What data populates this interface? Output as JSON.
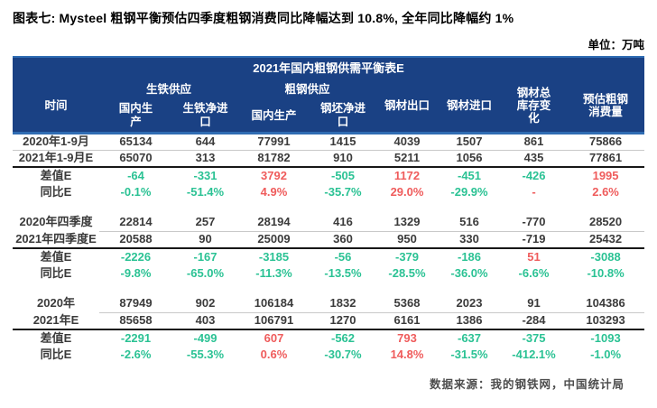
{
  "page": {
    "title": "图表七: Mysteel 粗钢平衡预估四季度粗钢消费同比降幅达到 10.8%, 全年同比降幅约 1%",
    "unit_label": "单位：万吨",
    "source": "数据来源：我的钢铁网，中国统计局"
  },
  "colors": {
    "header_bg": "#1a4184",
    "header_accent_line": "#2f6cb3",
    "positive_red": "#ef5c5c",
    "negative_green": "#2bc294",
    "body_text": "#3b3b3b"
  },
  "table": {
    "title": "2021年国内粗钢供需平衡表E",
    "header": {
      "time": "时间",
      "pig_iron_supply": "生铁供应",
      "crude_steel_supply": "粗钢供应",
      "pig_domestic": "国内生产",
      "pig_net_import": "生铁净进口",
      "crude_domestic": "国内生产",
      "billet_net_import": "钢坯净进口",
      "steel_export": "钢材出口",
      "steel_import": "钢材进口",
      "inventory_change": "钢材总库存变化",
      "est_consumption": "预估粗钢消费量"
    },
    "groups": [
      {
        "label_underline": true,
        "rows": [
          {
            "label": "2020年1-9月",
            "type": "actual",
            "values": [
              "65134",
              "644",
              "77991",
              "1415",
              "4039",
              "1507",
              "861",
              "75866"
            ]
          },
          {
            "label": "2021年1-9月E",
            "type": "actual",
            "values": [
              "65070",
              "313",
              "81782",
              "910",
              "5211",
              "1056",
              "435",
              "77861"
            ]
          },
          {
            "label": "差值E",
            "type": "diff",
            "values": [
              "-64",
              "-331",
              "3792",
              "-505",
              "1172",
              "-451",
              "-426",
              "1995"
            ]
          },
          {
            "label": "同比E",
            "type": "pct",
            "values": [
              "-0.1%",
              "-51.4%",
              "4.9%",
              "-35.7%",
              "29.0%",
              "-29.9%",
              "-",
              "2.6%"
            ]
          }
        ]
      },
      {
        "label_underline": false,
        "rows": [
          {
            "label": "2020年四季度",
            "type": "actual",
            "values": [
              "22814",
              "257",
              "28194",
              "416",
              "1329",
              "516",
              "-770",
              "28520"
            ]
          },
          {
            "label": "2021年四季度E",
            "type": "actual",
            "values": [
              "20588",
              "90",
              "25009",
              "360",
              "950",
              "330",
              "-719",
              "25432"
            ]
          },
          {
            "label": "差值E",
            "type": "diff",
            "values": [
              "-2226",
              "-167",
              "-3185",
              "-56",
              "-379",
              "-186",
              "51",
              "-3088"
            ]
          },
          {
            "label": "同比E",
            "type": "pct",
            "values": [
              "-9.8%",
              "-65.0%",
              "-11.3%",
              "-13.5%",
              "-28.5%",
              "-36.0%",
              "-6.6%",
              "-10.8%"
            ]
          }
        ]
      },
      {
        "label_underline": false,
        "rows": [
          {
            "label": "2020年",
            "type": "actual",
            "values": [
              "87949",
              "902",
              "106184",
              "1832",
              "5368",
              "2023",
              "91",
              "104386"
            ]
          },
          {
            "label": "2021年E",
            "type": "actual",
            "values": [
              "85658",
              "403",
              "106791",
              "1270",
              "6161",
              "1386",
              "-284",
              "103293"
            ]
          },
          {
            "label": "差值E",
            "type": "diff",
            "values": [
              "-2291",
              "-499",
              "607",
              "-562",
              "793",
              "-637",
              "-375",
              "-1093"
            ]
          },
          {
            "label": "同比E",
            "type": "pct",
            "values": [
              "-2.6%",
              "-55.3%",
              "0.6%",
              "-30.7%",
              "14.8%",
              "-31.5%",
              "-412.1%",
              "-1.0%"
            ]
          }
        ]
      }
    ]
  }
}
